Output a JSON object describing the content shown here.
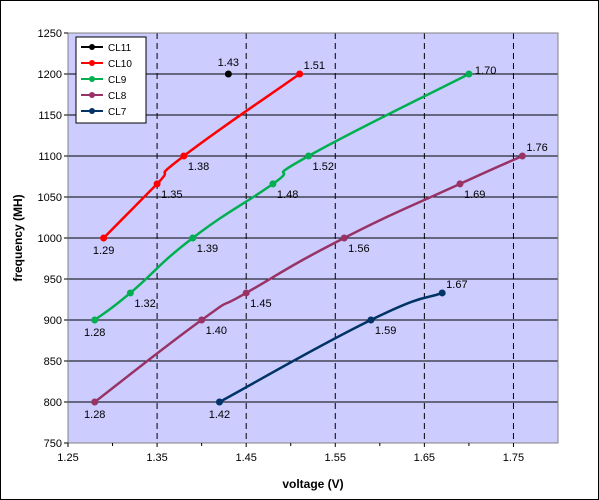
{
  "chart_data": {
    "type": "line",
    "title": "",
    "xlabel": "voltage (V)",
    "ylabel": "frequency (MH)",
    "xlim": [
      1.25,
      1.8
    ],
    "ylim": [
      750,
      1250
    ],
    "xticks": [
      "1.25",
      "1.35",
      "1.45",
      "1.55",
      "1.65",
      "1.75"
    ],
    "yticks": [
      "750",
      "800",
      "850",
      "900",
      "950",
      "1000",
      "1050",
      "1100",
      "1150",
      "1200",
      "1250"
    ],
    "grid": true,
    "legend_position": "top-left",
    "plot_background": "#ccccff",
    "series": [
      {
        "name": "CL11",
        "color": "#000000",
        "points": [
          {
            "x": 1.43,
            "y": 1200,
            "label": "1.43",
            "pos": "above"
          }
        ]
      },
      {
        "name": "CL10",
        "color": "#ff0000",
        "points": [
          {
            "x": 1.29,
            "y": 1000,
            "label": "1.29",
            "pos": "below"
          },
          {
            "x": 1.35,
            "y": 1066,
            "label": "1.35",
            "pos": "below-right"
          },
          {
            "x": 1.38,
            "y": 1100,
            "label": "1.38",
            "pos": "below-right"
          },
          {
            "x": 1.51,
            "y": 1200,
            "label": "1.51",
            "pos": "above-right"
          }
        ]
      },
      {
        "name": "CL9",
        "color": "#00b050",
        "points": [
          {
            "x": 1.28,
            "y": 900,
            "label": "1.28",
            "pos": "below"
          },
          {
            "x": 1.32,
            "y": 933,
            "label": "1.32",
            "pos": "below-right"
          },
          {
            "x": 1.39,
            "y": 1000,
            "label": "1.39",
            "pos": "below-right"
          },
          {
            "x": 1.48,
            "y": 1066,
            "label": "1.48",
            "pos": "below-right"
          },
          {
            "x": 1.52,
            "y": 1100,
            "label": "1.52",
            "pos": "below-right"
          },
          {
            "x": 1.7,
            "y": 1200,
            "label": "1.70",
            "pos": "right"
          }
        ]
      },
      {
        "name": "CL8",
        "color": "#993366",
        "points": [
          {
            "x": 1.28,
            "y": 800,
            "label": "1.28",
            "pos": "below"
          },
          {
            "x": 1.4,
            "y": 900,
            "label": "1.40",
            "pos": "below-right"
          },
          {
            "x": 1.45,
            "y": 933,
            "label": "1.45",
            "pos": "below-right"
          },
          {
            "x": 1.56,
            "y": 1000,
            "label": "1.56",
            "pos": "below-right"
          },
          {
            "x": 1.69,
            "y": 1066,
            "label": "1.69",
            "pos": "below-right"
          },
          {
            "x": 1.76,
            "y": 1100,
            "label": "1.76",
            "pos": "above-right"
          }
        ]
      },
      {
        "name": "CL7",
        "color": "#003366",
        "points": [
          {
            "x": 1.42,
            "y": 800,
            "label": "1.42",
            "pos": "below"
          },
          {
            "x": 1.59,
            "y": 900,
            "label": "1.59",
            "pos": "below-right"
          },
          {
            "x": 1.67,
            "y": 933,
            "label": "1.67",
            "pos": "above-right"
          }
        ]
      }
    ]
  }
}
